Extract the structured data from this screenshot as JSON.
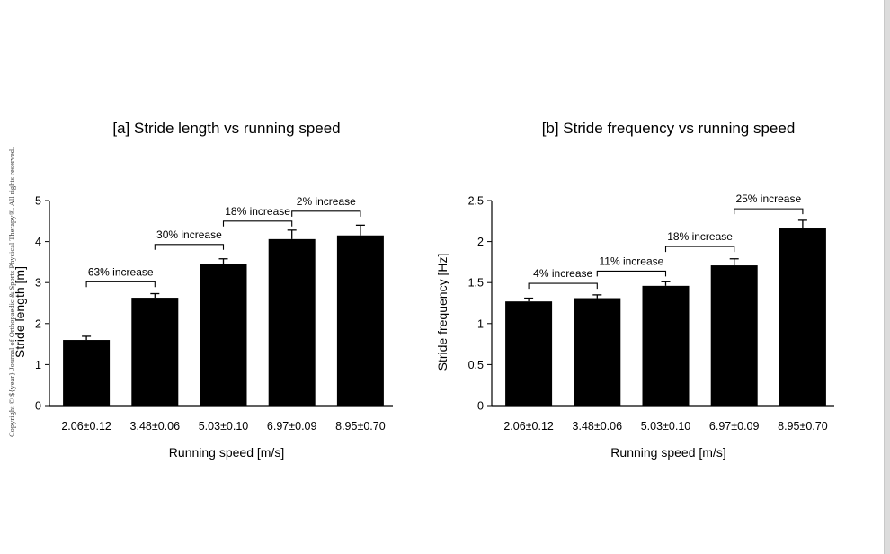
{
  "copyright": "Copyright © ${year} Journal of Orthopaedic & Sports Physical Therapy®. All rights reserved.",
  "chart_data": [
    {
      "type": "bar",
      "title": "[a] Stride length vs running speed",
      "xlabel": "Running speed [m/s]",
      "ylabel": "Stride length [m]",
      "ylim": [
        0,
        5
      ],
      "yticks": [
        "0",
        "1",
        "2",
        "3",
        "4",
        "5"
      ],
      "categories": [
        "2.06±0.12",
        "3.48±0.06",
        "5.03±0.10",
        "6.97±0.09",
        "8.95±0.70"
      ],
      "values": [
        1.6,
        2.63,
        3.45,
        4.06,
        4.15
      ],
      "errors": [
        0.09,
        0.1,
        0.13,
        0.22,
        0.25
      ],
      "bar_color": "#000000",
      "annotations": [
        {
          "text": "63% increase",
          "from": 0,
          "to": 1,
          "level": 3.02
        },
        {
          "text": "30% increase",
          "from": 1,
          "to": 2,
          "level": 3.93
        },
        {
          "text": "18% increase",
          "from": 2,
          "to": 3,
          "level": 4.5
        },
        {
          "text": "2% increase",
          "from": 3,
          "to": 4,
          "level": 4.74
        }
      ]
    },
    {
      "type": "bar",
      "title": "[b] Stride frequency vs running speed",
      "xlabel": "Running speed [m/s]",
      "ylabel": "Stride frequency [Hz]",
      "ylim": [
        0,
        2.5
      ],
      "yticks": [
        "0",
        "0.5",
        "1",
        "1.5",
        "2",
        "2.5"
      ],
      "categories": [
        "2.06±0.12",
        "3.48±0.06",
        "5.03±0.10",
        "6.97±0.09",
        "8.95±0.70"
      ],
      "values": [
        1.27,
        1.31,
        1.46,
        1.71,
        2.16
      ],
      "errors": [
        0.04,
        0.04,
        0.05,
        0.08,
        0.1
      ],
      "bar_color": "#000000",
      "annotations": [
        {
          "text": "4% increase",
          "from": 0,
          "to": 1,
          "level": 1.49
        },
        {
          "text": "11% increase",
          "from": 1,
          "to": 2,
          "level": 1.64
        },
        {
          "text": "18% increase",
          "from": 2,
          "to": 3,
          "level": 1.94
        },
        {
          "text": "25% increase",
          "from": 3,
          "to": 4,
          "level": 2.4
        }
      ]
    }
  ]
}
